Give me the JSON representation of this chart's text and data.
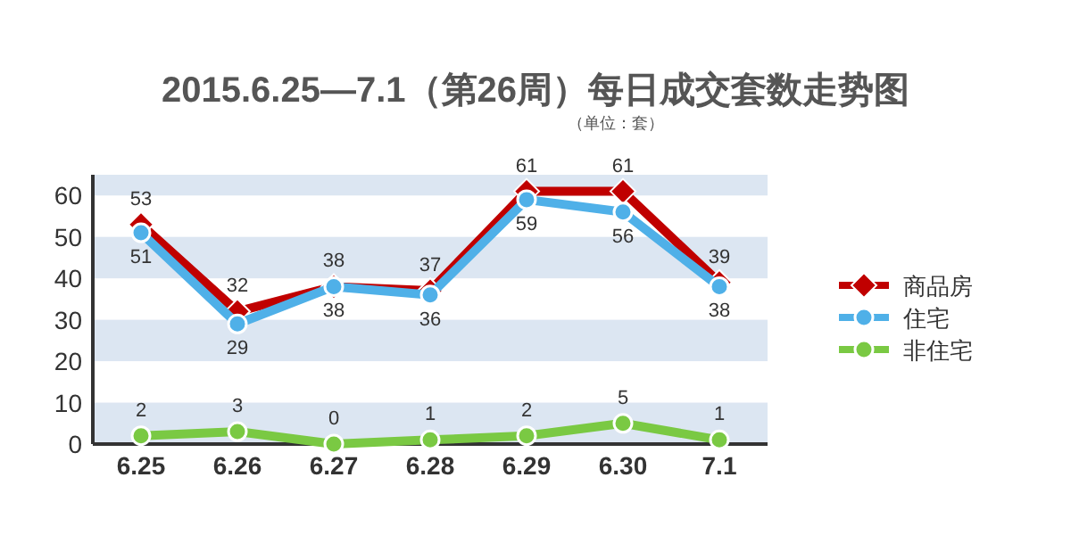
{
  "chart_data": {
    "type": "line",
    "title": "2015.6.25—7.1（第26周）每日成交套数走势图",
    "subtitle": "（单位：套）",
    "categories": [
      "6.25",
      "6.26",
      "6.27",
      "6.28",
      "6.29",
      "6.30",
      "7.1"
    ],
    "series": [
      {
        "name": "商品房",
        "color": "#c00000",
        "marker": "diamond",
        "values": [
          53,
          32,
          38,
          37,
          61,
          61,
          39
        ]
      },
      {
        "name": "住宅",
        "color": "#4fb0e8",
        "marker": "circle",
        "values": [
          51,
          29,
          38,
          36,
          59,
          56,
          38
        ]
      },
      {
        "name": "非住宅",
        "color": "#7ac943",
        "marker": "circle",
        "values": [
          2,
          3,
          0,
          1,
          2,
          5,
          1
        ]
      }
    ],
    "ylim": [
      0,
      65
    ],
    "yticks": [
      0,
      10,
      20,
      30,
      40,
      50,
      60
    ],
    "bands": [
      {
        "axis": "y",
        "from": 0,
        "to": 10,
        "color": "#dce6f2"
      },
      {
        "axis": "y",
        "from": 20,
        "to": 30,
        "color": "#dce6f2"
      },
      {
        "axis": "y",
        "from": 40,
        "to": 50,
        "color": "#dce6f2"
      },
      {
        "axis": "y",
        "from": 60,
        "to": 65,
        "color": "#dce6f2"
      }
    ],
    "data_labels": true,
    "legend": "right"
  }
}
